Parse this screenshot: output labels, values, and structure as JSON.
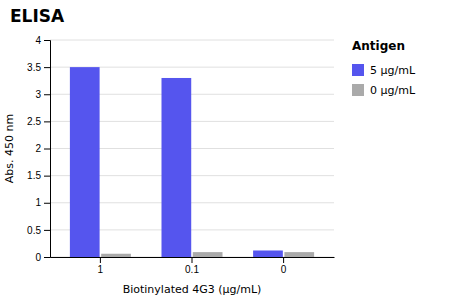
{
  "chart_data": {
    "type": "bar",
    "title": "ELISA",
    "xlabel": "Biotinylated 4G3 (μg/mL)",
    "ylabel": "Abs. 450 nm",
    "categories": [
      "1",
      "0.1",
      "0"
    ],
    "series": [
      {
        "name": "5 μg/mL",
        "color": "#5555ee",
        "values": [
          3.5,
          3.3,
          0.12
        ]
      },
      {
        "name": "0 μg/mL",
        "color": "#aaaaaa",
        "values": [
          0.06,
          0.09,
          0.09
        ]
      }
    ],
    "ylim": [
      0,
      4
    ],
    "yticks": [
      0,
      0.5,
      1,
      1.5,
      2,
      2.5,
      3,
      3.5,
      4
    ],
    "grid": true,
    "legend": "right",
    "legend_title": "Antigen"
  }
}
